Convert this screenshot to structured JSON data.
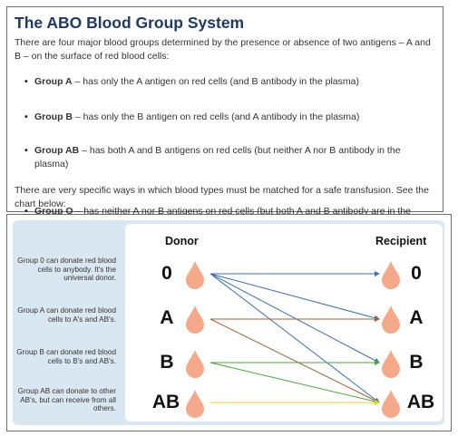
{
  "article": {
    "title": "The ABO Blood Group System",
    "intro": "There are four major blood groups determined by the presence or absence of two antigens – A and B – on the surface of red blood cells:",
    "groups": [
      {
        "name": "Group A",
        "text": " – has only the A antigen on red cells (and B antibody in the plasma)"
      },
      {
        "name": "Group B",
        "text": " – has only the B antigen on red cells (and A antibody in the plasma)"
      },
      {
        "name": "Group AB",
        "text": " – has both A and B antigens on red cells (but neither A nor B antibody in the plasma)"
      },
      {
        "name": "Group O",
        "text": " – has neither A nor B antigens on red cells (but both A and B antibody are in the plasma)"
      }
    ],
    "outro": "There are very specific ways in which blood types must be matched for a safe transfusion. See the chart below:"
  },
  "chart": {
    "donor_header": "Donor",
    "recipient_header": "Recipient",
    "donors": [
      "0",
      "A",
      "B",
      "AB"
    ],
    "recipients": [
      "0",
      "A",
      "B",
      "AB"
    ],
    "notes": [
      "Group 0 can donate red blood cells to anybody. It's the universal donor.",
      "Group A can donate red blood cells to A's and AB's.",
      "Group B can donate red blood cells to B's and AB's.",
      "Group AB can donate to other AB's, but can receive from all others."
    ],
    "colors": {
      "drop": "#f4a98a",
      "panel": "#d9e7f2",
      "line_0": "#3e6fae",
      "line_A": "#a0603c",
      "line_B": "#4fa23c",
      "line_AB": "#e8cf2e"
    },
    "compatibility": [
      {
        "donor": "0",
        "recipients": [
          "0",
          "A",
          "B",
          "AB"
        ]
      },
      {
        "donor": "A",
        "recipients": [
          "A",
          "AB"
        ]
      },
      {
        "donor": "B",
        "recipients": [
          "B",
          "AB"
        ]
      },
      {
        "donor": "AB",
        "recipients": [
          "AB"
        ]
      }
    ]
  }
}
